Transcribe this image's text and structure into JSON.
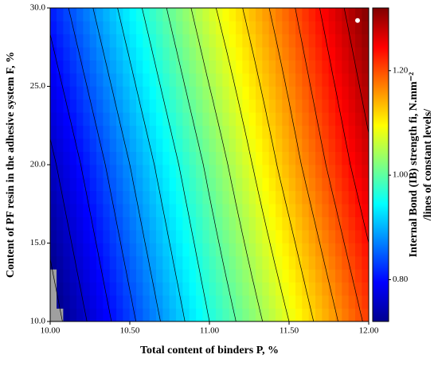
{
  "chart_data": {
    "type": "contour",
    "xlabel": "Total content of binders P, %",
    "ylabel": "Content of PF resin in the adhesive system F, %",
    "zlabel": "Internal Bond (IB) strength fi, N.mm⁻²",
    "zlabel2": "/lines of constant levels/",
    "x": [
      10,
      10.5,
      11,
      11.5,
      12
    ],
    "y": [
      10,
      20,
      30
    ],
    "z": [
      [
        0.7,
        0.83,
        0.96,
        1.08,
        1.21
      ],
      [
        0.75,
        0.88,
        1.01,
        1.14,
        1.27
      ],
      [
        0.81,
        0.94,
        1.07,
        1.19,
        1.32
      ]
    ],
    "levels": [
      0.72,
      0.76,
      0.8,
      0.84,
      0.88,
      0.92,
      0.96,
      1.0,
      1.04,
      1.08,
      1.12,
      1.16,
      1.2,
      1.24,
      1.28
    ],
    "marker": {
      "x": 11.93,
      "y": 29.2,
      "color": "#ffffff"
    },
    "xlim": [
      10,
      12
    ],
    "xticks": [
      {
        "value": 10,
        "label": "10.00"
      },
      {
        "value": 10.5,
        "label": "10.50"
      },
      {
        "value": 11,
        "label": "11.00"
      },
      {
        "value": 11.5,
        "label": "11.50"
      },
      {
        "value": 12,
        "label": "12.00"
      }
    ],
    "ylim": [
      10,
      30
    ],
    "yticks": [
      {
        "value": 10,
        "label": "10.0"
      },
      {
        "value": 15,
        "label": "15.0"
      },
      {
        "value": 20,
        "label": "20.0"
      },
      {
        "value": 25,
        "label": "25.0"
      },
      {
        "value": 30,
        "label": "30.0"
      }
    ],
    "zlim": [
      0.72,
      1.32
    ],
    "zticks": [
      {
        "value": 0.8,
        "label": "0.80"
      },
      {
        "value": 1.0,
        "label": "1.00"
      },
      {
        "value": 1.2,
        "label": "1.20"
      }
    ],
    "colormap": [
      "#00008f",
      "#0000ff",
      "#0080ff",
      "#00ffff",
      "#80ff80",
      "#ffff00",
      "#ff8000",
      "#ff0000",
      "#800000"
    ],
    "under_color": "#a0a0a0"
  }
}
